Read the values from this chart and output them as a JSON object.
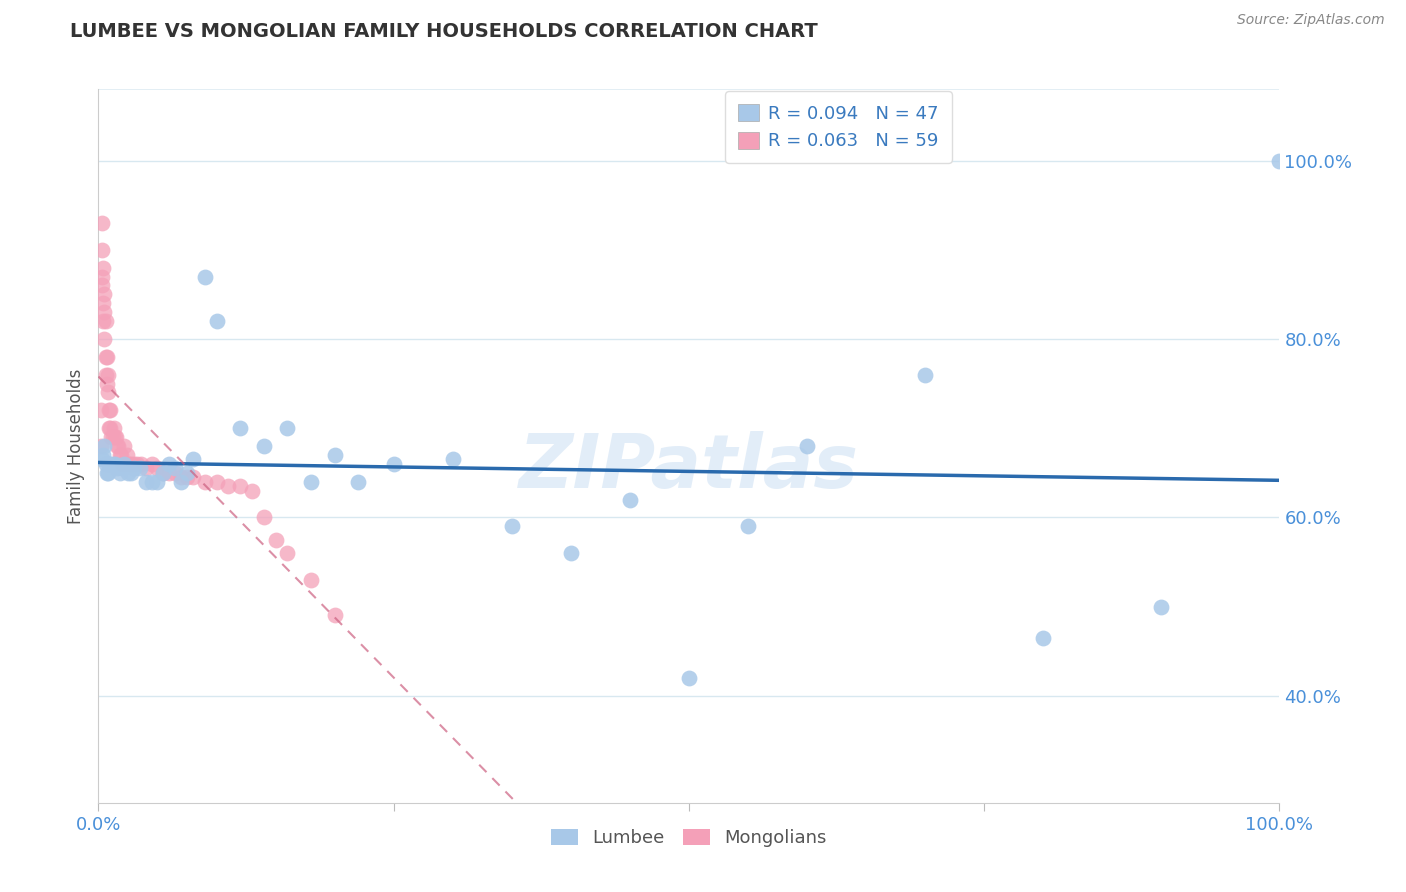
{
  "title": "LUMBEE VS MONGOLIAN FAMILY HOUSEHOLDS CORRELATION CHART",
  "source": "Source: ZipAtlas.com",
  "ylabel": "Family Households",
  "lumbee_R": 0.094,
  "lumbee_N": 47,
  "mongolian_R": 0.063,
  "mongolian_N": 59,
  "lumbee_color": "#a8c8e8",
  "mongolian_color": "#f4a0b8",
  "lumbee_line_color": "#2a6aad",
  "mongolian_line_color": "#cc6080",
  "ytick_labels": [
    "40.0%",
    "60.0%",
    "80.0%",
    "100.0%"
  ],
  "ytick_values": [
    0.4,
    0.6,
    0.8,
    1.0
  ],
  "lumbee_x": [
    0.003,
    0.004,
    0.005,
    0.006,
    0.007,
    0.008,
    0.009,
    0.01,
    0.012,
    0.014,
    0.016,
    0.018,
    0.02,
    0.022,
    0.025,
    0.028,
    0.03,
    0.035,
    0.04,
    0.045,
    0.05,
    0.055,
    0.06,
    0.065,
    0.07,
    0.075,
    0.08,
    0.09,
    0.1,
    0.12,
    0.14,
    0.16,
    0.18,
    0.2,
    0.22,
    0.25,
    0.3,
    0.35,
    0.4,
    0.45,
    0.5,
    0.55,
    0.6,
    0.7,
    0.8,
    0.9,
    1.0
  ],
  "lumbee_y": [
    0.665,
    0.67,
    0.68,
    0.66,
    0.65,
    0.65,
    0.66,
    0.66,
    0.66,
    0.66,
    0.655,
    0.65,
    0.655,
    0.66,
    0.65,
    0.65,
    0.655,
    0.655,
    0.64,
    0.64,
    0.64,
    0.65,
    0.66,
    0.655,
    0.64,
    0.65,
    0.665,
    0.87,
    0.82,
    0.7,
    0.68,
    0.7,
    0.64,
    0.67,
    0.64,
    0.66,
    0.665,
    0.59,
    0.56,
    0.62,
    0.42,
    0.59,
    0.68,
    0.76,
    0.465,
    0.5,
    1.0
  ],
  "mongolian_x": [
    0.002,
    0.002,
    0.003,
    0.003,
    0.003,
    0.003,
    0.004,
    0.004,
    0.004,
    0.005,
    0.005,
    0.005,
    0.006,
    0.006,
    0.006,
    0.007,
    0.007,
    0.008,
    0.008,
    0.009,
    0.009,
    0.01,
    0.01,
    0.011,
    0.012,
    0.013,
    0.014,
    0.015,
    0.016,
    0.017,
    0.018,
    0.019,
    0.02,
    0.022,
    0.024,
    0.026,
    0.028,
    0.03,
    0.033,
    0.036,
    0.04,
    0.045,
    0.05,
    0.055,
    0.06,
    0.065,
    0.07,
    0.075,
    0.08,
    0.09,
    0.1,
    0.11,
    0.12,
    0.13,
    0.14,
    0.15,
    0.16,
    0.18,
    0.2
  ],
  "mongolian_y": [
    0.68,
    0.72,
    0.87,
    0.9,
    0.93,
    0.86,
    0.84,
    0.88,
    0.82,
    0.83,
    0.85,
    0.8,
    0.78,
    0.82,
    0.76,
    0.78,
    0.75,
    0.76,
    0.74,
    0.72,
    0.7,
    0.72,
    0.7,
    0.69,
    0.69,
    0.7,
    0.69,
    0.69,
    0.68,
    0.68,
    0.67,
    0.67,
    0.66,
    0.68,
    0.67,
    0.66,
    0.66,
    0.66,
    0.66,
    0.66,
    0.655,
    0.66,
    0.655,
    0.65,
    0.65,
    0.65,
    0.645,
    0.645,
    0.645,
    0.64,
    0.64,
    0.635,
    0.635,
    0.63,
    0.6,
    0.575,
    0.56,
    0.53,
    0.49
  ],
  "watermark": "ZIPatlas",
  "background_color": "#ffffff",
  "grid_color": "#d8e8f0"
}
